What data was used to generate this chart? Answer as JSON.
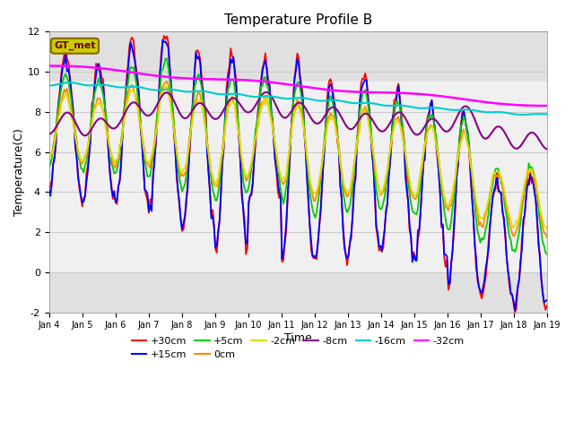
{
  "title": "Temperature Profile B",
  "xlabel": "Time",
  "ylabel": "Temperature(C)",
  "ylim": [
    -2,
    12
  ],
  "xlim": [
    0,
    15
  ],
  "xtick_labels": [
    "Jan 4",
    "Jan 5",
    "Jan 6",
    "Jan 7",
    "Jan 8",
    "Jan 9",
    "Jan 10",
    "Jan 11",
    "Jan 12",
    "Jan 13",
    "Jan 14",
    "Jan 15",
    "Jan 16",
    "Jan 17",
    "Jan 18",
    "Jan 19"
  ],
  "legend_entries": [
    "+30cm",
    "+15cm",
    "+5cm",
    "0cm",
    "-2cm",
    "-8cm",
    "-16cm",
    "-32cm"
  ],
  "line_colors": [
    "#ff0000",
    "#0000ff",
    "#00cc00",
    "#ff8800",
    "#dddd00",
    "#880088",
    "#00cccc",
    "#ff00ff"
  ],
  "gt_met_box_facecolor": "#cccc00",
  "gt_met_text_color": "#660000",
  "gt_met_edge_color": "#886600",
  "background_color": "#f0f0f0",
  "band_color": "#e0e0e0",
  "grid_color": "#cccccc"
}
